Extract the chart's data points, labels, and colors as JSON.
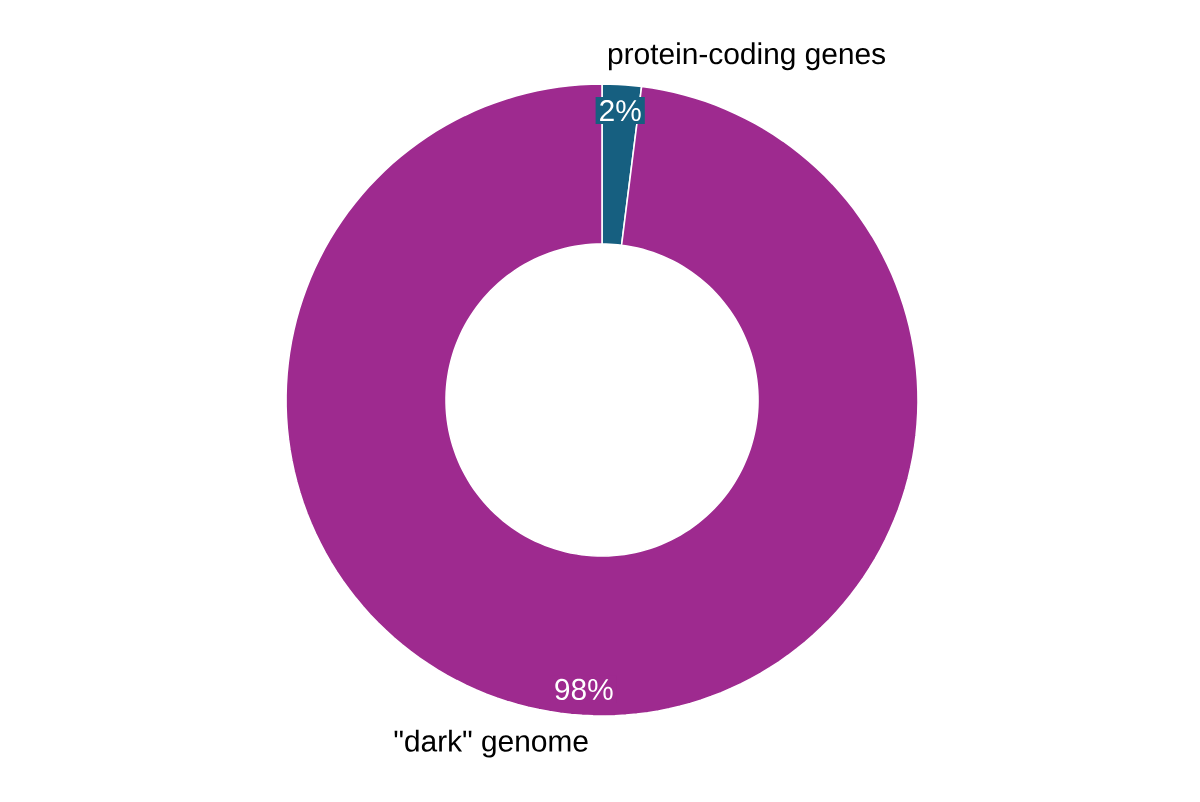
{
  "chart_data": {
    "type": "donut",
    "categories": [
      "protein-coding genes",
      "\"dark\" genome"
    ],
    "values": [
      2,
      98
    ],
    "colors": [
      "#165f80",
      "#9e2a8f"
    ],
    "value_labels": [
      "2%",
      "98%"
    ]
  }
}
